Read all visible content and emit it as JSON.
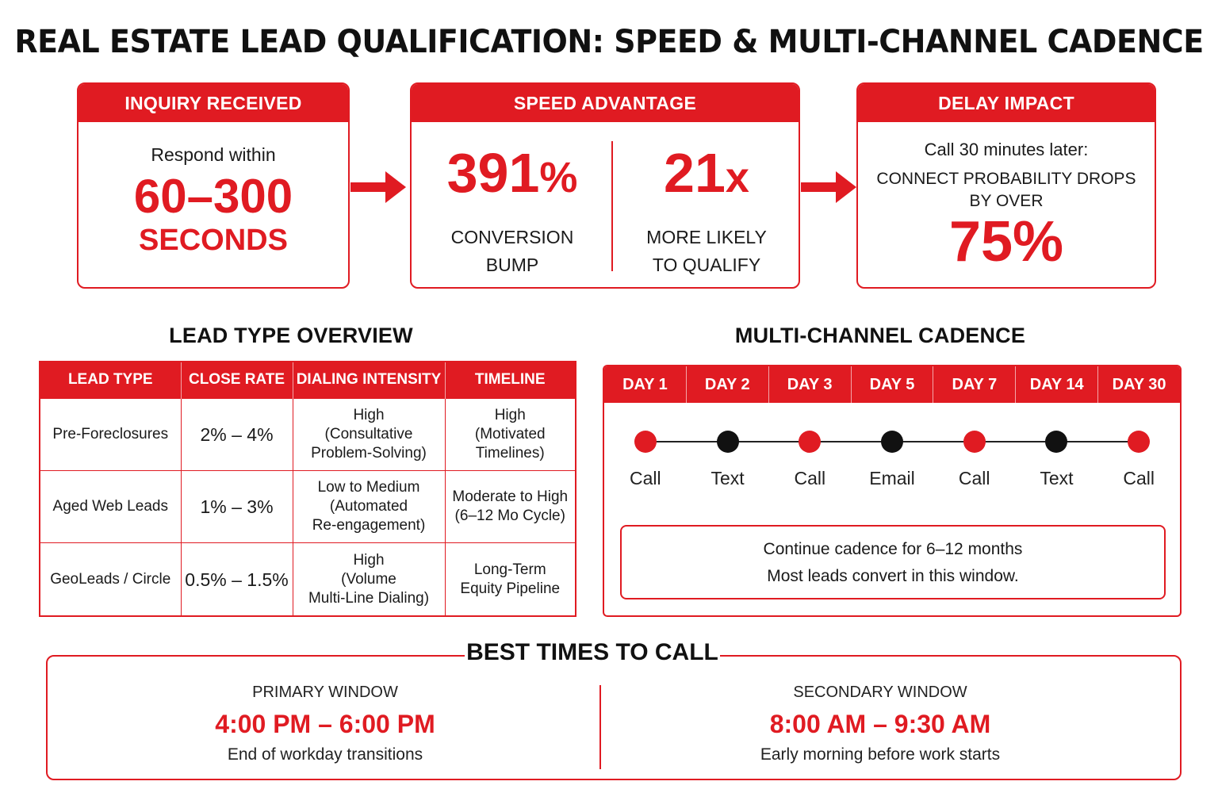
{
  "title": "REAL ESTATE LEAD QUALIFICATION: SPEED & MULTI-CHANNEL CADENCE",
  "inquiry": {
    "header": "INQUIRY RECEIVED",
    "line1": "Respond within",
    "big": "60–300",
    "unit": "SECONDS"
  },
  "speed": {
    "header": "SPEED ADVANTAGE",
    "left_value": "391",
    "left_suffix": "%",
    "left_label1": "CONVERSION",
    "left_label2": "BUMP",
    "right_value": "21",
    "right_suffix": "x",
    "right_label1": "MORE LIKELY",
    "right_label2": "TO QUALIFY"
  },
  "delay": {
    "header": "DELAY IMPACT",
    "line1": "Call 30 minutes later:",
    "line2": "CONNECT PROBABILITY DROPS",
    "line3": "BY OVER",
    "big": "75%"
  },
  "lead_overview": {
    "title": "LEAD TYPE OVERVIEW",
    "columns": [
      "LEAD TYPE",
      "CLOSE RATE",
      "DIALING INTENSITY",
      "TIMELINE"
    ],
    "rows": [
      {
        "type": "Pre-Foreclosures",
        "close": "2% – 4%",
        "intensity": [
          "High",
          "(Consultative",
          "Problem-Solving)"
        ],
        "timeline": [
          "High",
          "(Motivated",
          "Timelines)"
        ]
      },
      {
        "type": "Aged Web Leads",
        "close": "1% – 3%",
        "intensity": [
          "Low to Medium",
          "(Automated",
          "Re-engagement)"
        ],
        "timeline": [
          "Moderate to High",
          "(6–12 Mo Cycle)"
        ]
      },
      {
        "type": "GeoLeads / Circle",
        "close": "0.5% – 1.5%",
        "intensity": [
          "High",
          "(Volume",
          "Multi-Line Dialing)"
        ],
        "timeline": [
          "Long-Term",
          "Equity Pipeline"
        ]
      }
    ]
  },
  "cadence": {
    "title": "MULTI-CHANNEL CADENCE",
    "days": [
      "DAY 1",
      "DAY 2",
      "DAY 3",
      "DAY 5",
      "DAY 7",
      "DAY 14",
      "DAY 30"
    ],
    "channels": [
      "Call",
      "Text",
      "Call",
      "Email",
      "Call",
      "Text",
      "Call"
    ],
    "dot_colors": [
      "#e01b22",
      "#111111",
      "#e01b22",
      "#111111",
      "#e01b22",
      "#111111",
      "#e01b22"
    ],
    "note_line1": "Continue cadence for 6–12 months",
    "note_line2": "Most leads convert in this window."
  },
  "best_times": {
    "title": "BEST TIMES TO CALL",
    "primary": {
      "label": "PRIMARY WINDOW",
      "time": "4:00 PM – 6:00 PM",
      "desc": "End of workday transitions"
    },
    "secondary": {
      "label": "SECONDARY WINDOW",
      "time": "8:00 AM – 9:30 AM",
      "desc": "Early morning before work starts"
    }
  },
  "colors": {
    "accent": "#e01b22",
    "dark": "#111111"
  }
}
